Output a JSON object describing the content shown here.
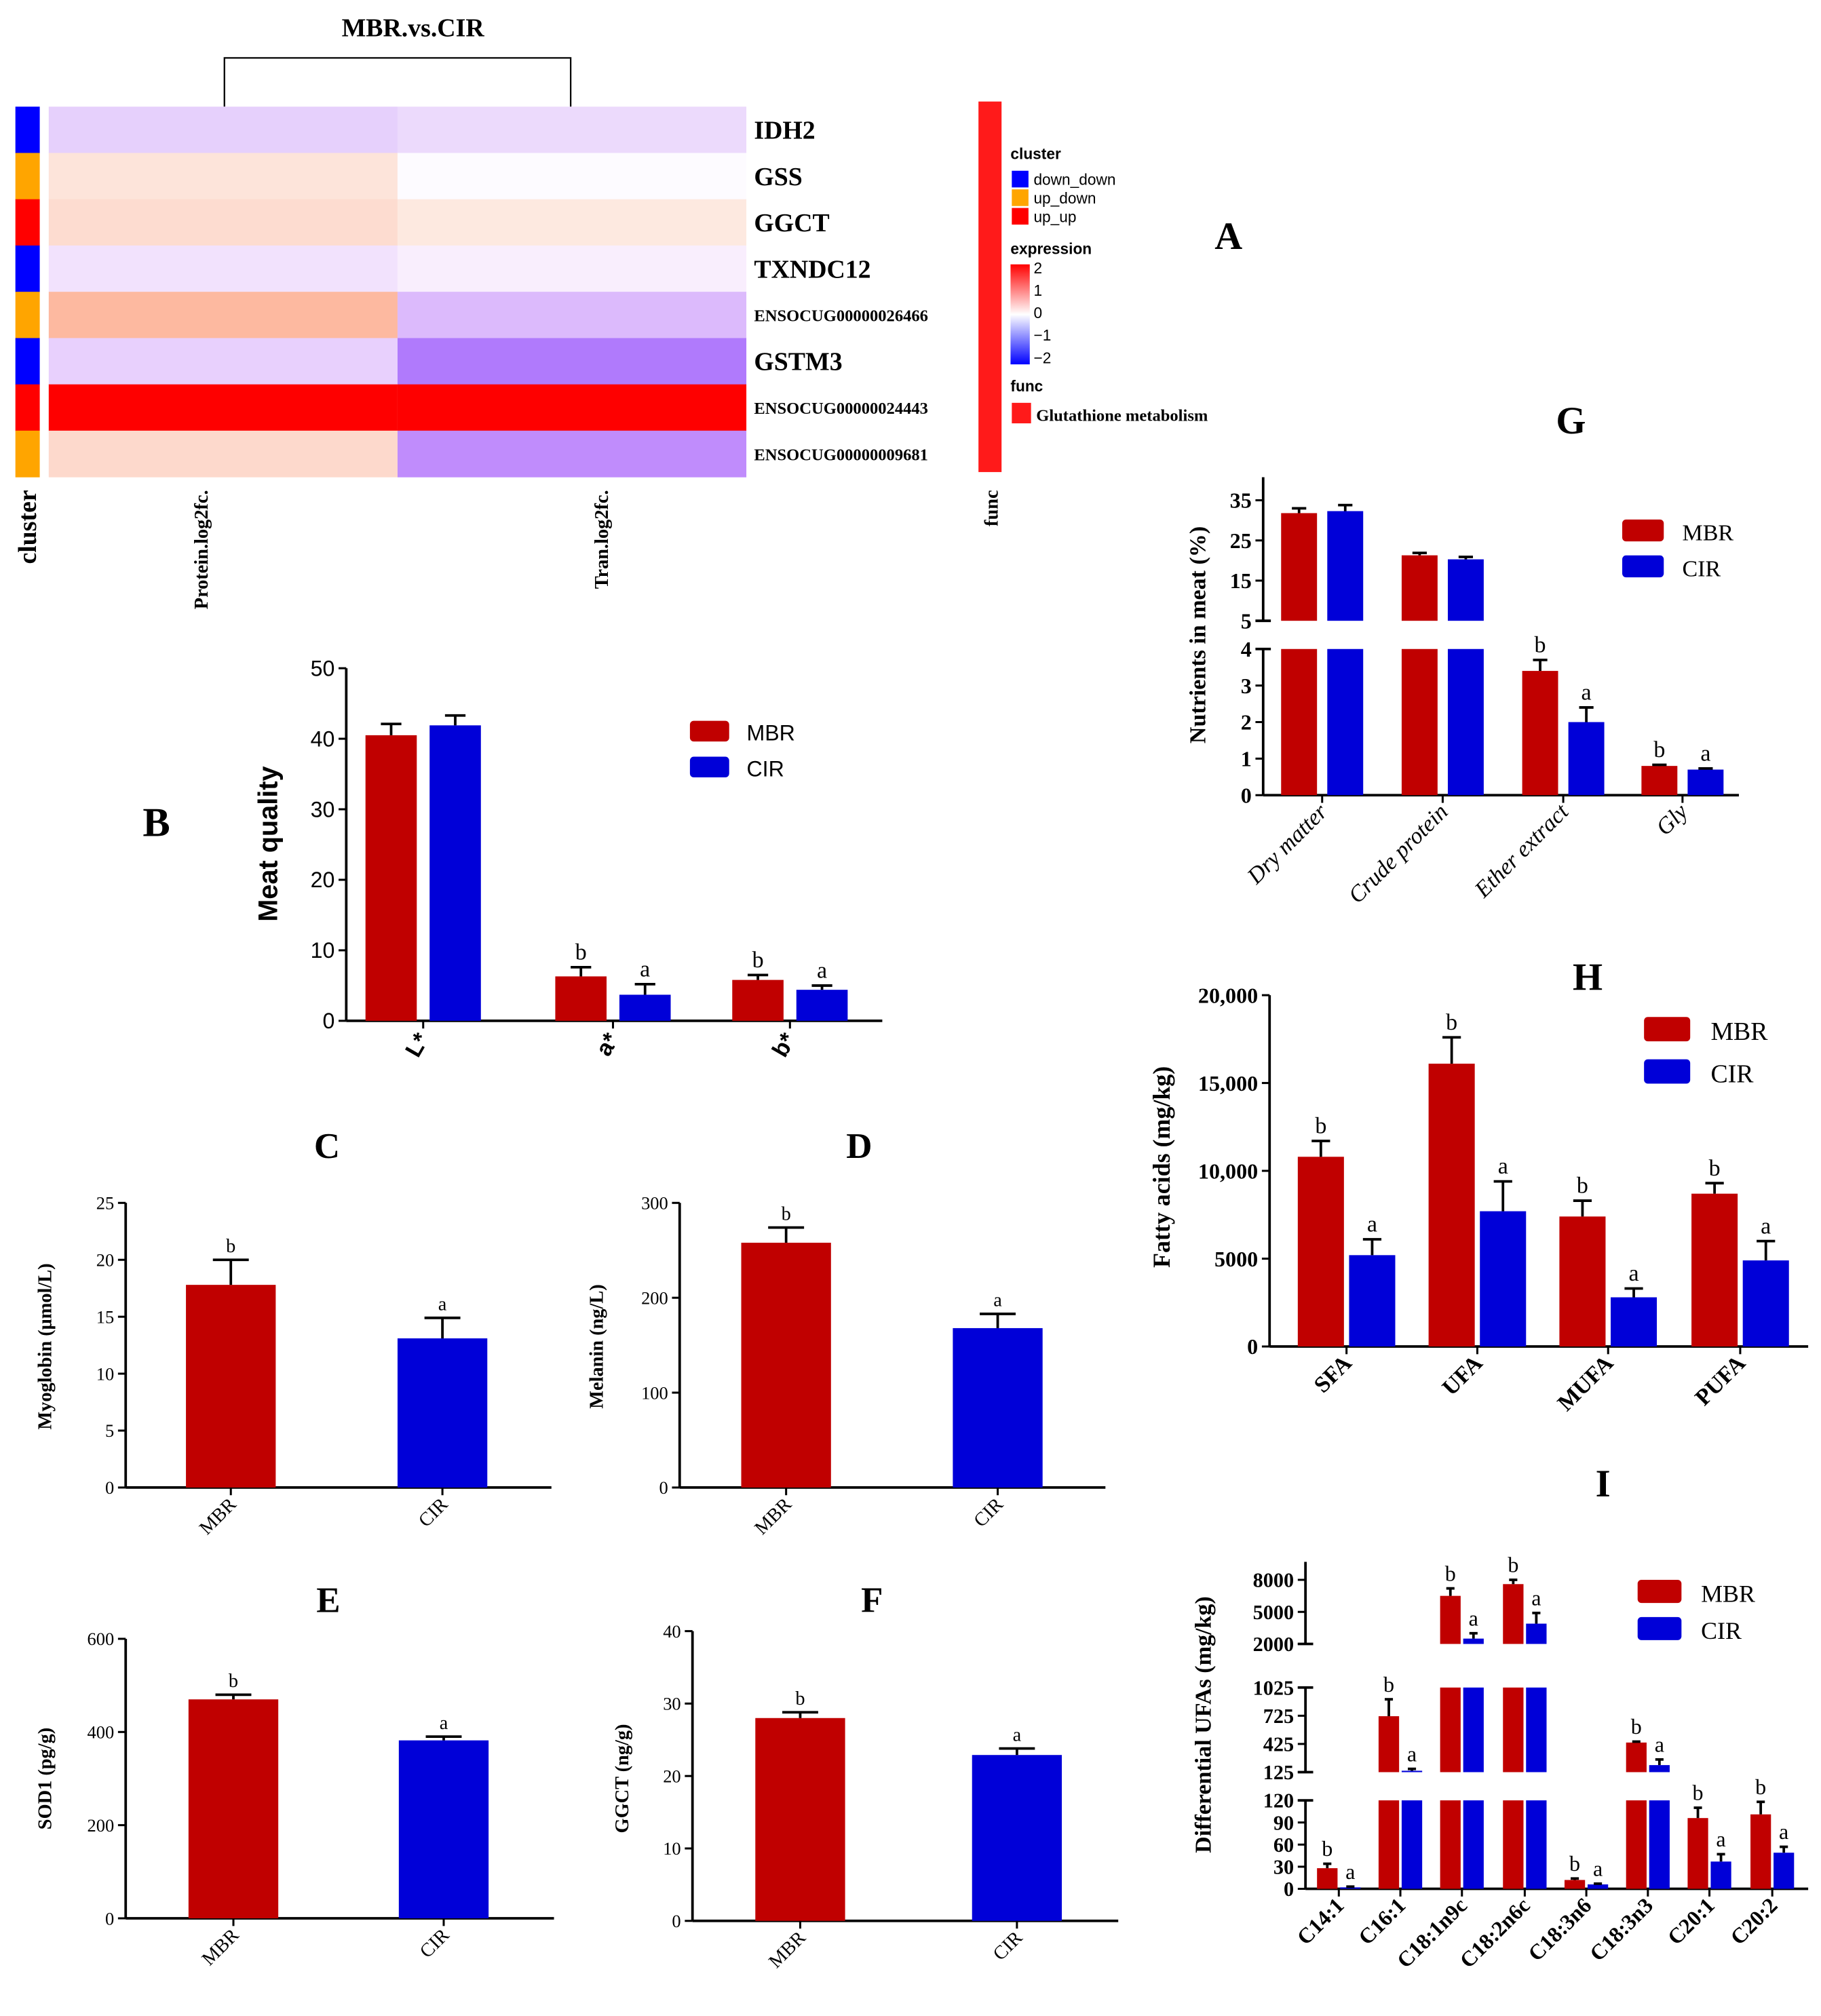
{
  "heatmap": {
    "panel": "A",
    "title": "MBR.vs.CIR",
    "columns": [
      "cluster",
      "Protein.log2fc.",
      "Tran.log2fc.",
      "func"
    ],
    "rows": [
      {
        "gene": "IDH2",
        "cluster": "down_down",
        "protein_color": "#e6d0fc",
        "tran_color": "#ecdafc"
      },
      {
        "gene": "GSS",
        "cluster": "up_down",
        "protein_color": "#fde4da",
        "tran_color": "#fdfbff"
      },
      {
        "gene": "GGCT",
        "cluster": "up_up",
        "protein_color": "#fddcd0",
        "tran_color": "#fde9e0"
      },
      {
        "gene": "TXNDC12",
        "cluster": "down_down",
        "protein_color": "#f2e2fd",
        "tran_color": "#f9eefd"
      },
      {
        "gene": "ENSOCUG00000026466",
        "cluster": "up_down",
        "protein_color": "#fdb9a0",
        "tran_color": "#dcbafc"
      },
      {
        "gene": "GSTM3",
        "cluster": "down_down",
        "protein_color": "#e8d0fd",
        "tran_color": "#b07afc"
      },
      {
        "gene": "ENSOCUG00000024443",
        "cluster": "up_up",
        "protein_color": "#fe0000",
        "tran_color": "#fe0000"
      },
      {
        "gene": "ENSOCUG00000009681",
        "cluster": "up_down",
        "protein_color": "#fdd9cc",
        "tran_color": "#c08cfc"
      }
    ],
    "legend": {
      "cluster_title": "cluster",
      "clusters": [
        {
          "name": "down_down",
          "color": "#0000ff"
        },
        {
          "name": "up_down",
          "color": "#ffa500"
        },
        {
          "name": "up_up",
          "color": "#ff0000"
        }
      ],
      "expression_title": "expression",
      "expression_ticks": [
        "2",
        "1",
        "0",
        "−1",
        "−2"
      ],
      "func_title": "func",
      "func_items": [
        {
          "name": "Glutathione metabolism",
          "color": "#ff1a1a"
        }
      ]
    }
  },
  "colors": {
    "MBR": "#c00000",
    "CIR": "#0000d8"
  },
  "chart_data": [
    {
      "panel": "B",
      "type": "bar",
      "ylabel": "Meat quality",
      "categories": [
        "L*",
        "a*",
        "b*"
      ],
      "ylim": [
        0,
        50
      ],
      "yticks": [
        0,
        10,
        20,
        30,
        40,
        50
      ],
      "ytick_labels": [
        "0",
        "10",
        "20",
        "30",
        "40",
        "50"
      ],
      "legend": "top-right",
      "series": [
        {
          "name": "MBR",
          "values": [
            40.5,
            6.3,
            5.8
          ],
          "errors": [
            1.6,
            1.3,
            0.7
          ],
          "letters": [
            "",
            "b",
            "b"
          ]
        },
        {
          "name": "CIR",
          "values": [
            41.9,
            3.7,
            4.4
          ],
          "errors": [
            1.4,
            1.5,
            0.6
          ],
          "letters": [
            "",
            "a",
            "a"
          ]
        }
      ]
    },
    {
      "panel": "C",
      "type": "bar",
      "ylabel": "Myoglobin (μmol/L)",
      "categories": [
        "MBR",
        "CIR"
      ],
      "ylim": [
        0,
        25
      ],
      "yticks": [
        0,
        5,
        10,
        15,
        20,
        25
      ],
      "ytick_labels": [
        "0",
        "5",
        "10",
        "15",
        "20",
        "25"
      ],
      "values": [
        17.8,
        13.1
      ],
      "errors": [
        2.2,
        1.8
      ],
      "letters": [
        "b",
        "a"
      ]
    },
    {
      "panel": "D",
      "type": "bar",
      "ylabel": "Melanin (ng/L)",
      "categories": [
        "MBR",
        "CIR"
      ],
      "ylim": [
        0,
        300
      ],
      "yticks": [
        0,
        100,
        200,
        300
      ],
      "ytick_labels": [
        "0",
        "100",
        "200",
        "300"
      ],
      "values": [
        258,
        168
      ],
      "errors": [
        16,
        15
      ],
      "letters": [
        "b",
        "a"
      ]
    },
    {
      "panel": "E",
      "type": "bar",
      "ylabel": "SOD1 (pg/g)",
      "categories": [
        "MBR",
        "CIR"
      ],
      "ylim": [
        0,
        600
      ],
      "yticks": [
        0,
        200,
        400,
        600
      ],
      "ytick_labels": [
        "0",
        "200",
        "400",
        "600"
      ],
      "values": [
        470,
        382
      ],
      "errors": [
        10,
        8
      ],
      "letters": [
        "b",
        "a"
      ]
    },
    {
      "panel": "F",
      "type": "bar",
      "ylabel": "GGCT (ng/g)",
      "categories": [
        "MBR",
        "CIR"
      ],
      "ylim": [
        0,
        40
      ],
      "yticks": [
        0,
        10,
        20,
        30,
        40
      ],
      "ytick_labels": [
        "0",
        "10",
        "20",
        "30",
        "40"
      ],
      "values": [
        28.0,
        22.9
      ],
      "errors": [
        0.8,
        0.9
      ],
      "letters": [
        "b",
        "a"
      ]
    },
    {
      "panel": "G",
      "type": "bar",
      "ylabel": "Nutrients in meat (%)",
      "categories": [
        "Dry matter",
        "Crude protein",
        "Ether extract",
        "Gly"
      ],
      "axis_segments": [
        [
          0,
          4
        ],
        [
          5,
          35
        ]
      ],
      "yticks": [
        0,
        1,
        2,
        3,
        4,
        5,
        15,
        25,
        35
      ],
      "ytick_labels": [
        "0",
        "1",
        "2",
        "3",
        "4",
        "5",
        "15",
        "25",
        "35"
      ],
      "legend": "top-right",
      "series": [
        {
          "name": "MBR",
          "values": [
            31.8,
            21.3,
            3.4,
            0.8
          ],
          "errors": [
            1.2,
            0.6,
            0.3,
            0.03
          ],
          "letters": [
            "",
            "",
            "b",
            "b"
          ]
        },
        {
          "name": "CIR",
          "values": [
            32.3,
            20.3,
            2.0,
            0.7
          ],
          "errors": [
            1.5,
            0.6,
            0.4,
            0.03
          ],
          "letters": [
            "",
            "",
            "a",
            "a"
          ]
        }
      ]
    },
    {
      "panel": "H",
      "type": "bar",
      "ylabel": "Fatty acids (mg/kg)",
      "categories": [
        "SFA",
        "UFA",
        "MUFA",
        "PUFA"
      ],
      "ylim": [
        0,
        20000
      ],
      "yticks": [
        0,
        5000,
        10000,
        15000,
        20000
      ],
      "ytick_labels": [
        "0",
        "5000",
        "10,000",
        "15,000",
        "20,000"
      ],
      "legend": "top-right",
      "series": [
        {
          "name": "MBR",
          "values": [
            10800,
            16100,
            7400,
            8700
          ],
          "errors": [
            900,
            1500,
            900,
            600
          ],
          "letters": [
            "b",
            "b",
            "b",
            "b"
          ]
        },
        {
          "name": "CIR",
          "values": [
            5200,
            7700,
            2800,
            4900
          ],
          "errors": [
            900,
            1700,
            500,
            1100
          ],
          "letters": [
            "a",
            "a",
            "a",
            "a"
          ]
        }
      ]
    },
    {
      "panel": "I",
      "type": "bar",
      "ylabel": "Differential UFAs (mg/kg)",
      "categories": [
        "C14:1",
        "C16:1",
        "C18:1n9c",
        "C18:2n6c",
        "C18:3n6",
        "C18:3n3",
        "C20:1",
        "C20:2"
      ],
      "axis_segments": [
        [
          0,
          120
        ],
        [
          125,
          1025
        ],
        [
          2000,
          8000
        ]
      ],
      "yticks": [
        0,
        30,
        60,
        90,
        120,
        125,
        425,
        725,
        1025,
        2000,
        5000,
        8000
      ],
      "ytick_labels": [
        "0",
        "30",
        "60",
        "90",
        "120",
        "125",
        "425",
        "725",
        "1025",
        "2000",
        "5000",
        "8000"
      ],
      "legend": "top-right",
      "series": [
        {
          "name": "MBR",
          "values": [
            28,
            720,
            6500,
            7600,
            12,
            440,
            96,
            101
          ],
          "errors": [
            6,
            180,
            700,
            400,
            2,
            10,
            14,
            17
          ],
          "letters": [
            "b",
            "b",
            "b",
            "b",
            "b",
            "b",
            "b",
            "b"
          ]
        },
        {
          "name": "CIR",
          "values": [
            2,
            140,
            2500,
            3900,
            6,
            200,
            37,
            49
          ],
          "errors": [
            1,
            20,
            500,
            1000,
            1,
            60,
            10,
            8
          ],
          "letters": [
            "a",
            "a",
            "a",
            "a",
            "a",
            "a",
            "a",
            "a"
          ]
        }
      ]
    }
  ]
}
